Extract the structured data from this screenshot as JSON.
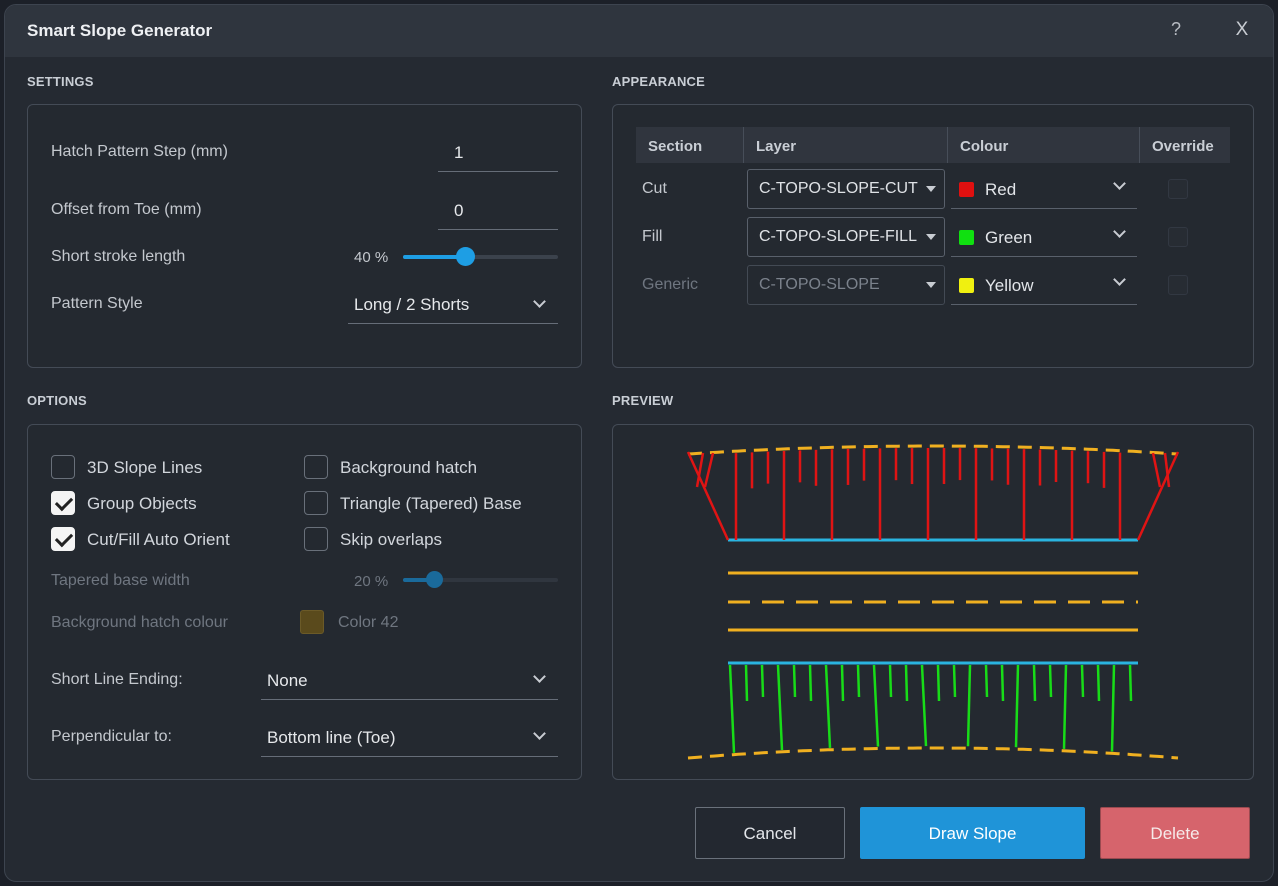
{
  "window": {
    "title": "Smart Slope Generator",
    "help_glyph": "?",
    "close_glyph": "X"
  },
  "settings": {
    "heading": "SETTINGS",
    "hatch_step": {
      "label": "Hatch Pattern Step (mm)",
      "value": "1"
    },
    "offset_toe": {
      "label": "Offset from Toe (mm)",
      "value": "0"
    },
    "short_stroke": {
      "label": "Short stroke length",
      "value_text": "40 %",
      "fraction": 0.4
    },
    "pattern_style": {
      "label": "Pattern Style",
      "value": "Long / 2 Shorts"
    }
  },
  "appearance": {
    "heading": "APPEARANCE",
    "columns": [
      "Section",
      "Layer",
      "Colour",
      "Override"
    ],
    "rows": [
      {
        "section": "Cut",
        "layer": "C-TOPO-SLOPE-CUT",
        "colour": "Red",
        "swatch": "#e01010",
        "enabled": true
      },
      {
        "section": "Fill",
        "layer": "C-TOPO-SLOPE-FILL",
        "colour": "Green",
        "swatch": "#10e010",
        "enabled": true
      },
      {
        "section": "Generic",
        "layer": "C-TOPO-SLOPE",
        "colour": "Yellow",
        "swatch": "#f0f010",
        "enabled": false
      }
    ]
  },
  "options": {
    "heading": "OPTIONS",
    "checkboxes": [
      {
        "label": "3D Slope Lines",
        "checked": false
      },
      {
        "label": "Group Objects",
        "checked": true
      },
      {
        "label": "Cut/Fill Auto Orient",
        "checked": true
      },
      {
        "label": "Background hatch",
        "checked": false
      },
      {
        "label": "Triangle (Tapered) Base",
        "checked": false
      },
      {
        "label": "Skip overlaps",
        "checked": false
      }
    ],
    "tapered_base": {
      "label": "Tapered base width",
      "value_text": "20 %",
      "fraction": 0.2
    },
    "bg_hatch_colour": {
      "label": "Background hatch colour",
      "value": "Color 42",
      "swatch": "#5a4a1c"
    },
    "short_line_ending": {
      "label": "Short Line Ending:",
      "value": "None"
    },
    "perpendicular_to": {
      "label": "Perpendicular to:",
      "value": "Bottom line (Toe)"
    }
  },
  "preview": {
    "heading": "PREVIEW",
    "colors": {
      "cut": "#e01414",
      "fill": "#18dc18",
      "toe": "#2ab4e0",
      "generic": "#f0b020"
    }
  },
  "buttons": {
    "cancel": "Cancel",
    "draw": "Draw Slope",
    "delete": "Delete"
  }
}
